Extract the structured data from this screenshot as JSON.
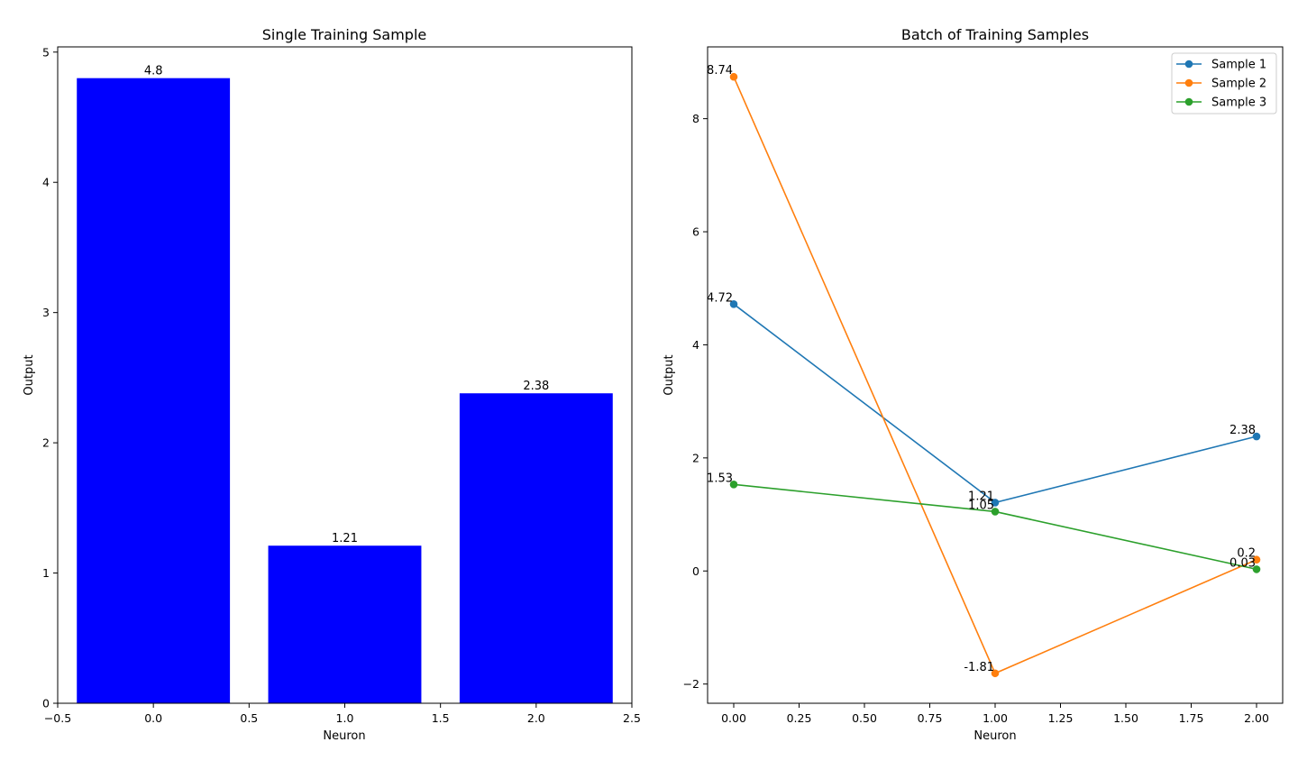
{
  "chart_data": [
    {
      "type": "bar",
      "title": "Single Training Sample",
      "xlabel": "Neuron",
      "ylabel": "Output",
      "categories": [
        0,
        1,
        2
      ],
      "values": [
        4.8,
        1.21,
        2.38
      ],
      "data_labels": [
        "4.8",
        "1.21",
        "2.38"
      ],
      "bar_color": "#0000ff",
      "xlim": [
        -0.5,
        2.5
      ],
      "ylim": [
        0,
        5.04
      ],
      "xticks": [
        "−0.5",
        "0.0",
        "0.5",
        "1.0",
        "1.5",
        "2.0",
        "2.5"
      ],
      "yticks": [
        "0",
        "1",
        "2",
        "3",
        "4",
        "5"
      ],
      "grid": false,
      "legend": null
    },
    {
      "type": "line",
      "title": "Batch of Training Samples",
      "xlabel": "Neuron",
      "ylabel": "Output",
      "x": [
        0,
        1,
        2
      ],
      "series": [
        {
          "name": "Sample 1",
          "values": [
            4.72,
            1.21,
            2.38
          ],
          "labels": [
            "4.72",
            "1.21",
            "2.38"
          ],
          "color": "#1f77b4"
        },
        {
          "name": "Sample 2",
          "values": [
            8.74,
            -1.81,
            0.2
          ],
          "labels": [
            "8.74",
            "-1.81",
            "0.2"
          ],
          "color": "#ff7f0e"
        },
        {
          "name": "Sample 3",
          "values": [
            1.53,
            1.05,
            0.03
          ],
          "labels": [
            "1.53",
            "1.05",
            "0.03"
          ],
          "color": "#2ca02c"
        }
      ],
      "xlim": [
        -0.1,
        2.1
      ],
      "ylim": [
        -2.34,
        9.27
      ],
      "xticks": [
        "0.00",
        "0.25",
        "0.50",
        "0.75",
        "1.00",
        "1.25",
        "1.50",
        "1.75",
        "2.00"
      ],
      "yticks": [
        "−2",
        "0",
        "2",
        "4",
        "6",
        "8"
      ],
      "grid": false,
      "legend": "top-right"
    }
  ]
}
